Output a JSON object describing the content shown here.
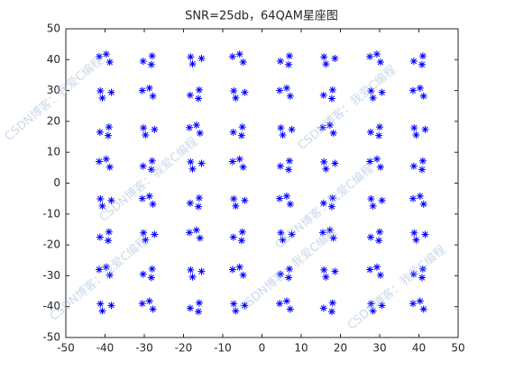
{
  "chart_data": {
    "type": "scatter",
    "title": "SNR=25db，64QAM星座图",
    "watermark": "CSDN博客：我爱C编程",
    "xlim": [
      -50,
      50
    ],
    "xticks": [
      -50,
      -40,
      -30,
      -20,
      -10,
      0,
      10,
      20,
      30,
      40,
      50
    ],
    "ylim": [
      -50,
      50
    ],
    "yticks": [
      -50,
      -40,
      -30,
      -20,
      -10,
      0,
      10,
      20,
      30,
      40,
      50
    ],
    "marker": "*",
    "color": "#0000ff",
    "x": [
      -41.5,
      -38.8,
      -39.7,
      -28,
      -30.3,
      -28.2,
      -17.7,
      -15.4,
      -18.2,
      -7.5,
      -4.8,
      -5.7,
      7,
      4.7,
      6.8,
      16.3,
      18.6,
      15.8,
      27.5,
      30.2,
      29.3,
      41,
      38.7,
      40.8,
      -40.7,
      -38.4,
      -41.2,
      -30.5,
      -27.8,
      -28.7,
      -16,
      -18.3,
      -16.2,
      -6.7,
      -4.4,
      -7.2,
      4.5,
      7.2,
      6.3,
      18,
      15.7,
      17.8,
      28.3,
      30.6,
      27.8,
      38.5,
      41.2,
      40.3,
      -39,
      -41.3,
      -39.2,
      -29.7,
      -27.4,
      -30.2,
      -18.5,
      -15.8,
      -16.7,
      -5,
      -7.3,
      -5.2,
      5.3,
      7.6,
      4.8,
      15.5,
      18.2,
      17.3,
      30,
      27.7,
      29.8,
      39.3,
      41.6,
      38.8,
      -41.5,
      -38.8,
      -39.7,
      -28,
      -30.3,
      -28.2,
      -17.7,
      -15.4,
      -18.2,
      -7.5,
      -4.8,
      -5.7,
      7,
      4.7,
      6.8,
      16.3,
      18.6,
      15.8,
      27.5,
      30.2,
      29.3,
      41,
      38.7,
      40.8,
      -40.7,
      -38.4,
      -41.2,
      -30.5,
      -27.8,
      -28.7,
      -16,
      -18.3,
      -16.2,
      -6.7,
      -4.4,
      -7.2,
      4.5,
      7.2,
      6.3,
      18,
      15.7,
      17.8,
      28.3,
      30.6,
      27.8,
      38.5,
      41.2,
      40.3,
      -39,
      -41.3,
      -39.2,
      -29.7,
      -27.4,
      -30.2,
      -18.5,
      -15.8,
      -16.7,
      -5,
      -7.3,
      -5.2,
      5.3,
      7.6,
      4.8,
      15.5,
      18.2,
      17.3,
      30,
      27.7,
      29.8,
      39.3,
      41.6,
      38.8,
      -41.5,
      -38.8,
      -39.7,
      -28,
      -30.3,
      -28.2,
      -17.7,
      -15.4,
      -18.2,
      -7.5,
      -4.8,
      -5.7,
      7,
      4.7,
      6.8,
      16.3,
      18.6,
      15.8,
      27.5,
      30.2,
      29.3,
      41,
      38.7,
      40.8,
      -40.7,
      -38.4,
      -41.2,
      -30.5,
      -27.8,
      -28.7,
      -16,
      -18.3,
      -16.2,
      -6.7,
      -4.4,
      -7.2,
      4.5,
      7.2,
      6.3,
      18,
      15.7,
      17.8,
      28.3,
      30.6,
      27.8,
      38.5,
      41.2,
      40.3
    ],
    "y": [
      41,
      39.2,
      41.8,
      41.2,
      39.5,
      38.4,
      38.6,
      40.4,
      40.9,
      41,
      39.2,
      41.8,
      41.2,
      39.5,
      38.4,
      38.6,
      40.4,
      40.9,
      41,
      39.2,
      41.8,
      41.2,
      39.5,
      38.4,
      27.6,
      29.4,
      29.9,
      30,
      28.2,
      30.8,
      30.2,
      28.5,
      27.4,
      27.6,
      29.4,
      29.9,
      30,
      28.2,
      30.8,
      30.2,
      28.5,
      27.4,
      27.6,
      29.4,
      29.9,
      30,
      28.2,
      30.8,
      18.2,
      16.5,
      15.4,
      15.6,
      17.4,
      17.9,
      18,
      16.2,
      18.8,
      18.2,
      16.5,
      15.4,
      15.6,
      17.4,
      17.9,
      18,
      16.2,
      18.8,
      18.2,
      16.5,
      15.4,
      15.6,
      17.4,
      17.9,
      7,
      5.2,
      7.8,
      7.2,
      5.5,
      4.4,
      4.6,
      6.4,
      6.9,
      7,
      5.2,
      7.8,
      7.2,
      5.5,
      4.4,
      4.6,
      6.4,
      6.9,
      7,
      5.2,
      7.8,
      7.2,
      5.5,
      4.4,
      -7.4,
      -5.6,
      -5.1,
      -5,
      -6.8,
      -4.2,
      -4.8,
      -6.5,
      -7.6,
      -7.4,
      -5.6,
      -5.1,
      -5,
      -6.8,
      -4.2,
      -4.8,
      -6.5,
      -7.6,
      -7.4,
      -5.6,
      -5.1,
      -5,
      -6.8,
      -4.2,
      -15.8,
      -17.5,
      -18.6,
      -18.4,
      -16.6,
      -16.1,
      -16,
      -17.8,
      -15.2,
      -15.8,
      -17.5,
      -18.6,
      -18.4,
      -16.6,
      -16.1,
      -16,
      -17.8,
      -15.2,
      -15.8,
      -17.5,
      -18.6,
      -18.4,
      -16.6,
      -16.1,
      -28,
      -29.8,
      -27.2,
      -27.8,
      -29.5,
      -30.6,
      -30.4,
      -28.6,
      -28.1,
      -28,
      -29.8,
      -27.2,
      -27.8,
      -29.5,
      -30.6,
      -30.4,
      -28.6,
      -28.1,
      -28,
      -29.8,
      -27.2,
      -27.8,
      -29.5,
      -30.6,
      -41.4,
      -39.6,
      -39.1,
      -39,
      -40.8,
      -38.2,
      -38.8,
      -40.5,
      -41.6,
      -41.4,
      -39.6,
      -39.1,
      -39,
      -40.8,
      -38.2,
      -38.8,
      -40.5,
      -41.6,
      -41.4,
      -39.6,
      -39.1,
      -39,
      -40.8,
      -38.2
    ]
  }
}
